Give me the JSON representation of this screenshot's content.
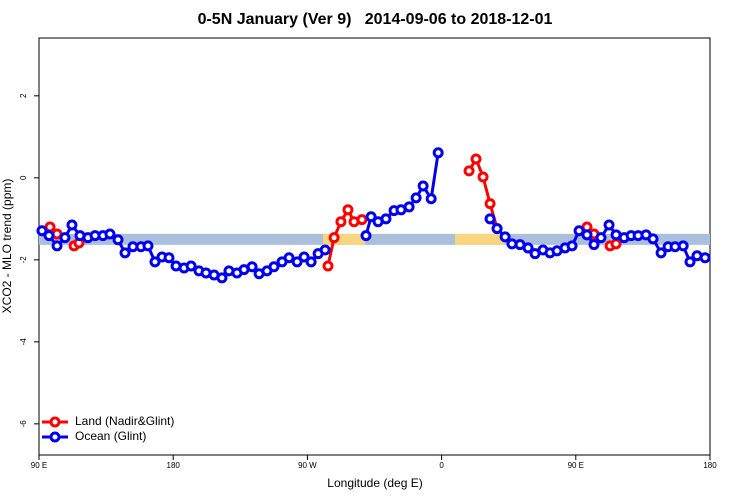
{
  "chart_data": {
    "type": "line",
    "title": "0-5N January (Ver 9)   2014-09-06 to 2018-12-01",
    "x_label": "Longitude (deg E)",
    "y_label": "XCO2 - MLO trend (ppm)",
    "xlim": [
      90,
      540
    ],
    "ylim": [
      -6.76,
      3.41
    ],
    "xticks": [
      {
        "value": 90,
        "label": "90 E"
      },
      180,
      {
        "value": 270,
        "label": "90 W"
      },
      {
        "value": 360,
        "label": "0"
      },
      {
        "value": 450,
        "label": "90 E"
      },
      {
        "value": 540,
        "label": "180"
      }
    ],
    "yticks": [
      2,
      0,
      -2,
      -4,
      -6
    ],
    "legend": "bottom-left",
    "reference_band": {
      "value": -1.5,
      "color": "#a9bfdc",
      "land_color": "#f7d67f",
      "land_segments": [
        [
          280.5,
          308.6
        ],
        [
          369,
          402.5
        ]
      ]
    },
    "series": [
      {
        "name": "Land (Nadir&Glint)",
        "color": "#ff0000",
        "x": [
          97.4,
          102.1,
          null,
          113.5,
          116.8,
          null,
          283.8,
          287.9,
          292.5,
          297.2,
          301.3,
          306.6,
          null,
          378.4,
          383.1,
          387.8,
          392.5,
          397.2,
          null,
          457.5,
          462.2,
          null,
          473.0,
          477.0
        ],
        "values": [
          -1.2,
          -1.37,
          null,
          -1.66,
          -1.59,
          null,
          -2.15,
          -1.46,
          -1.07,
          -0.78,
          -1.07,
          -1.02,
          null,
          0.17,
          0.46,
          0.02,
          -0.63,
          -1.24,
          null,
          -1.2,
          -1.37,
          null,
          -1.66,
          -1.61
        ]
      },
      {
        "name": "Ocean (Glint)",
        "color": "#0000ee",
        "x": [
          92.0,
          96.7,
          102.1,
          107.4,
          112.1,
          117.5,
          122.8,
          127.6,
          132.9,
          137.6,
          143.0,
          147.7,
          153.0,
          158.4,
          163.1,
          167.8,
          172.5,
          177.2,
          181.9,
          187.3,
          192.0,
          197.3,
          202.0,
          207.4,
          212.7,
          217.4,
          222.8,
          227.5,
          232.9,
          237.6,
          242.9,
          247.6,
          253.0,
          257.7,
          263.1,
          267.8,
          272.5,
          277.2,
          281.9,
          null,
          309.3,
          312.7,
          317.4,
          322.7,
          328.1,
          332.8,
          338.2,
          342.9,
          347.6,
          353.0,
          357.7,
          null,
          392.5,
          397.2,
          402.6,
          407.2,
          412.6,
          418.0,
          422.7,
          428.0,
          432.7,
          437.4,
          442.8,
          447.5,
          452.2,
          457.5,
          462.2,
          466.9,
          472.3,
          477.0,
          482.4,
          487.1,
          491.8,
          497.1,
          501.8,
          507.2,
          511.9,
          516.6,
          522.0,
          526.6,
          531.3,
          536.7
        ],
        "values": [
          -1.29,
          -1.41,
          -1.66,
          -1.46,
          -1.15,
          -1.41,
          -1.46,
          -1.41,
          -1.41,
          -1.37,
          -1.51,
          -1.83,
          -1.68,
          -1.68,
          -1.66,
          -2.05,
          -1.93,
          -1.95,
          -2.15,
          -2.2,
          -2.15,
          -2.27,
          -2.32,
          -2.37,
          -2.44,
          -2.27,
          -2.32,
          -2.24,
          -2.17,
          -2.34,
          -2.27,
          -2.17,
          -2.05,
          -1.95,
          -2.05,
          -1.93,
          -2.05,
          -1.85,
          -1.76,
          null,
          -1.41,
          -0.95,
          -1.07,
          -1.0,
          -0.8,
          -0.78,
          -0.71,
          -0.49,
          -0.2,
          -0.51,
          0.61,
          null,
          -1.0,
          -1.24,
          -1.44,
          -1.61,
          -1.63,
          -1.71,
          -1.85,
          -1.76,
          -1.83,
          -1.78,
          -1.71,
          -1.66,
          -1.29,
          -1.39,
          -1.63,
          -1.46,
          -1.15,
          -1.39,
          -1.46,
          -1.41,
          -1.41,
          -1.39,
          -1.49,
          -1.83,
          -1.68,
          -1.68,
          -1.66,
          -2.05,
          -1.9,
          -1.95
        ]
      }
    ]
  }
}
